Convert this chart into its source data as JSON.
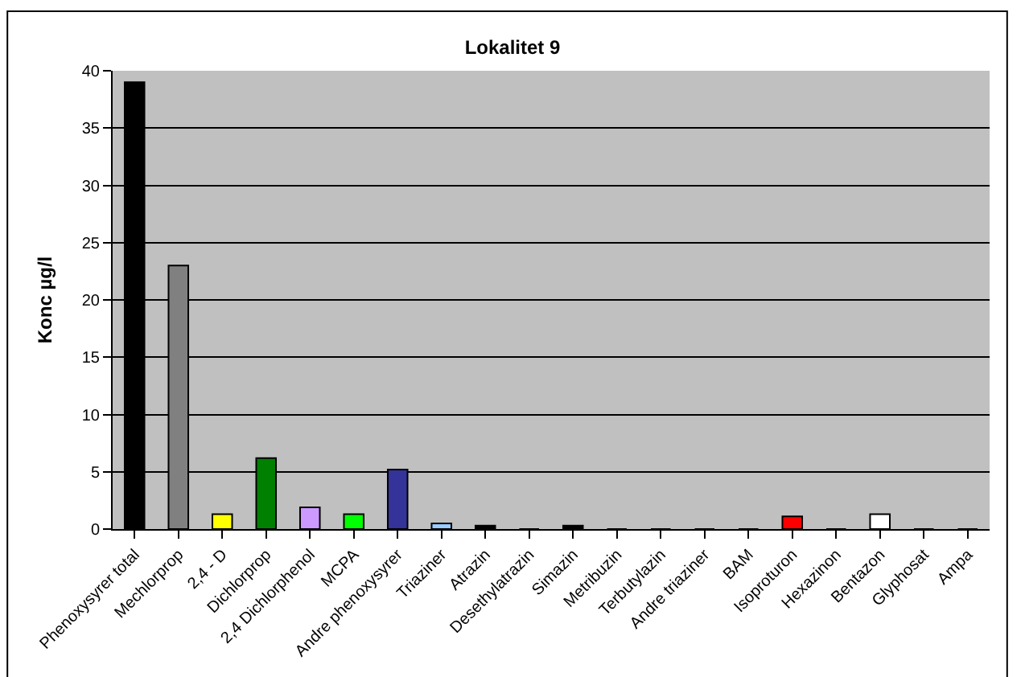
{
  "chart_data": {
    "type": "bar",
    "title": "Lokalitet 9",
    "ylabel": "Konc µg/l",
    "categories": [
      "Phenoxysyrer total",
      "Mechlorprop",
      "2,4 - D",
      "Dichlorprop",
      "2,4 Dichlorphenol",
      "MCPA",
      "Andre phenoxysyrer",
      "Triaziner",
      "Atrazin",
      "Desethylatrazin",
      "Simazin",
      "Metribuzin",
      "Terbutylazin",
      "Andre triaziner",
      "BAM",
      "Isoproturon",
      "Hexazinon",
      "Bentazon",
      "Glyphosat",
      "Ampa"
    ],
    "values": [
      39,
      23,
      1.3,
      6.2,
      1.9,
      1.3,
      5.2,
      0.5,
      0.3,
      0,
      0.3,
      0,
      0,
      0,
      0,
      1.1,
      0,
      1.3,
      0,
      0
    ],
    "colors": [
      "#000000",
      "#808080",
      "#ffff00",
      "#008000",
      "#cc99ff",
      "#00ff00",
      "#333399",
      "#99ccff",
      "#000000",
      "#000000",
      "#000000",
      "#000000",
      "#000000",
      "#000000",
      "#000000",
      "#ff0000",
      "#000000",
      "#ffffff",
      "#000000",
      "#000000"
    ],
    "ylim": [
      0,
      40
    ],
    "yticks": [
      0,
      5,
      10,
      15,
      20,
      25,
      30,
      35,
      40
    ],
    "grid": "y"
  }
}
